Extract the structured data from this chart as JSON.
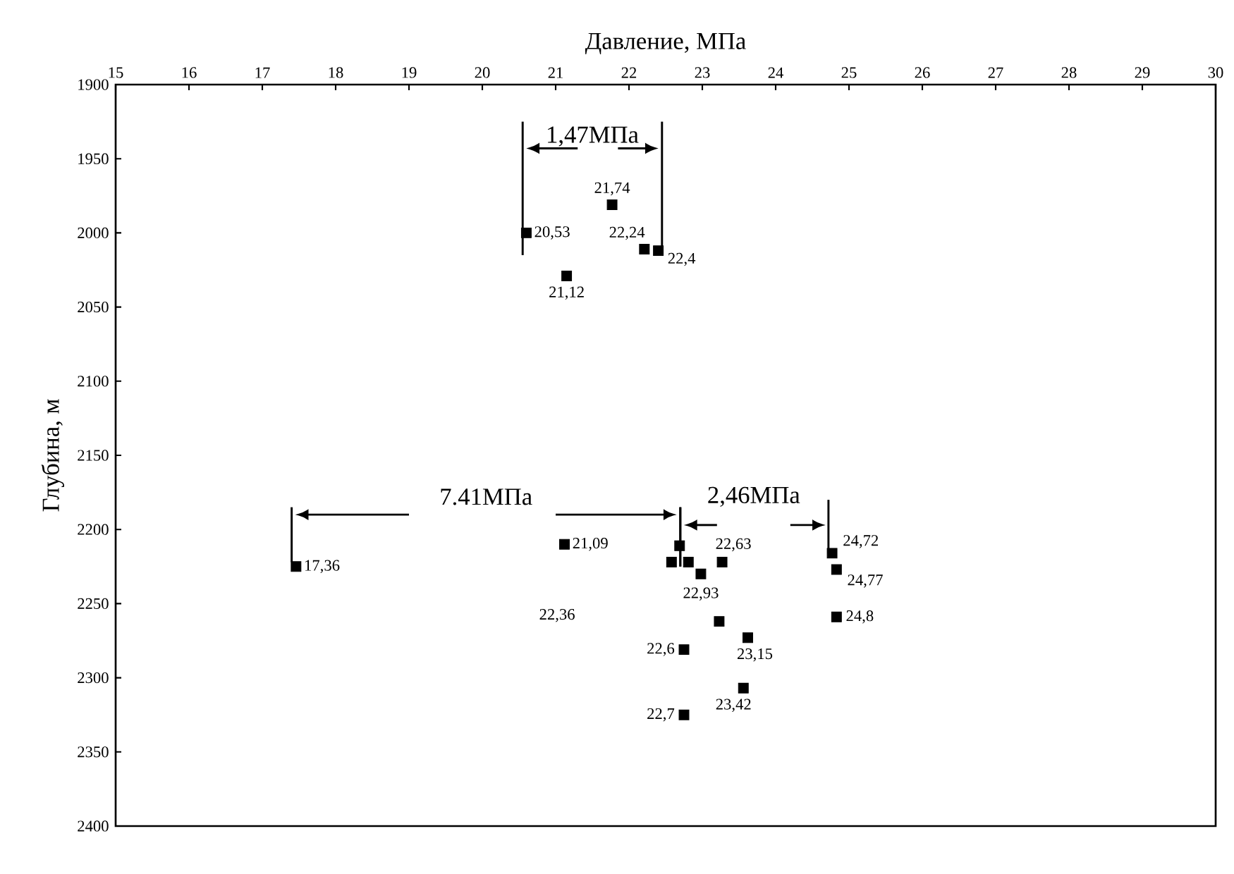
{
  "chart_data": {
    "type": "scatter",
    "xlabel": "Давление, МПа",
    "ylabel": "Глубина, м",
    "x": [
      21.77,
      20.6,
      22.21,
      22.4,
      21.15,
      17.46,
      21.12,
      22.69,
      22.58,
      22.81,
      23.27,
      22.98,
      23.23,
      23.62,
      22.75,
      23.56,
      22.75,
      24.77,
      24.83,
      24.83
    ],
    "values": [
      1981,
      2000,
      2011,
      2012,
      2029,
      2225,
      2210,
      2211,
      2222,
      2222,
      2222,
      2230,
      2262,
      2273,
      2281,
      2307,
      2325,
      2216,
      2227,
      2259
    ],
    "color": "#000000",
    "marker": "square",
    "xlim": [
      15,
      30
    ],
    "ylim": [
      2400,
      1900
    ],
    "xticks": [
      15,
      16,
      17,
      18,
      19,
      20,
      21,
      22,
      23,
      24,
      25,
      26,
      27,
      28,
      29,
      30
    ],
    "yticks": [
      1900,
      1950,
      2000,
      2050,
      2100,
      2150,
      2200,
      2250,
      2300,
      2350,
      2400
    ],
    "annotations": [
      {
        "text": "21,74",
        "x": 21.77,
        "y": 1981
      },
      {
        "text": "20,53",
        "x": 20.6,
        "y": 2000
      },
      {
        "text": "22,24",
        "x": 22.21,
        "y": 2011
      },
      {
        "text": "22,4",
        "x": 22.4,
        "y": 2012
      },
      {
        "text": "21,12",
        "x": 21.15,
        "y": 2029
      },
      {
        "text": "17,36",
        "x": 17.46,
        "y": 2225
      },
      {
        "text": "21,09",
        "x": 21.12,
        "y": 2210
      },
      {
        "text": "22,63",
        "x": 23.27,
        "y": 2222
      },
      "22,36",
      {
        "text": "22,93",
        "x": 22.98,
        "y": 2230
      },
      {
        "text": "23,15",
        "x": 23.62,
        "y": 2273
      },
      {
        "text": "22,6",
        "x": 22.75,
        "y": 2281
      },
      {
        "text": "23,42",
        "x": 23.56,
        "y": 2307
      },
      {
        "text": "22,7",
        "x": 22.75,
        "y": 2325
      },
      {
        "text": "24,72",
        "x": 24.77,
        "y": 2216
      },
      {
        "text": "24,77",
        "x": 24.83,
        "y": 2227
      },
      {
        "text": "24,8",
        "x": 24.83,
        "y": 2259
      },
      {
        "text": "1,47МПа",
        "x": 22.4,
        "y": 2012
      },
      "7.41МПа",
      {
        "text": "2,46МПа",
        "x": 22.69,
        "y": 2211
      }
    ]
  }
}
